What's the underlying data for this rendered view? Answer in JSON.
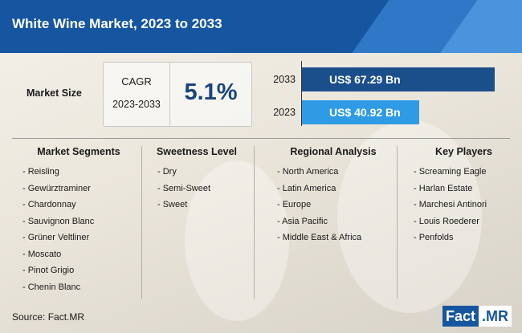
{
  "header": {
    "title": "White Wine Market, 2023 to 2033"
  },
  "market_size": {
    "label": "Market Size",
    "cagr_title": "CAGR",
    "cagr_period": "2023-2033",
    "cagr_value": "5.1%"
  },
  "chart_data": {
    "type": "bar",
    "orientation": "horizontal",
    "title": "Market Size",
    "categories": [
      "2033",
      "2023"
    ],
    "values": [
      67.29,
      40.92
    ],
    "value_labels": [
      "US$ 67.29 Bn",
      "US$ 40.92 Bn"
    ],
    "bar_colors": [
      "#1b4f8c",
      "#2f9be4"
    ]
  },
  "columns": [
    {
      "title": "Market Segments",
      "items": [
        "Reisling",
        "Gewürztraminer",
        "Chardonnay",
        "Sauvignon Blanc",
        "Grüner Veltliner",
        "Moscato",
        "Pinot Grigio",
        "Chenin Blanc"
      ]
    },
    {
      "title": "Sweetness Level",
      "items": [
        "Dry",
        "Semi-Sweet",
        "Sweet"
      ]
    },
    {
      "title": "Regional Analysis",
      "items": [
        "North America",
        "Latin America",
        "Europe",
        "Asia Pacific",
        "Middle East & Africa"
      ]
    },
    {
      "title": "Key Players",
      "items": [
        "Screaming Eagle",
        "Harlan Estate",
        "Marchesi Antinori",
        "Louis Roederer",
        "Penfolds"
      ]
    }
  ],
  "footer": {
    "source": "Source: Fact.MR",
    "logo_left": "Fact",
    "logo_right": ".MR"
  },
  "colors": {
    "brand": "#1656a0",
    "accent": "#2f9be4"
  }
}
